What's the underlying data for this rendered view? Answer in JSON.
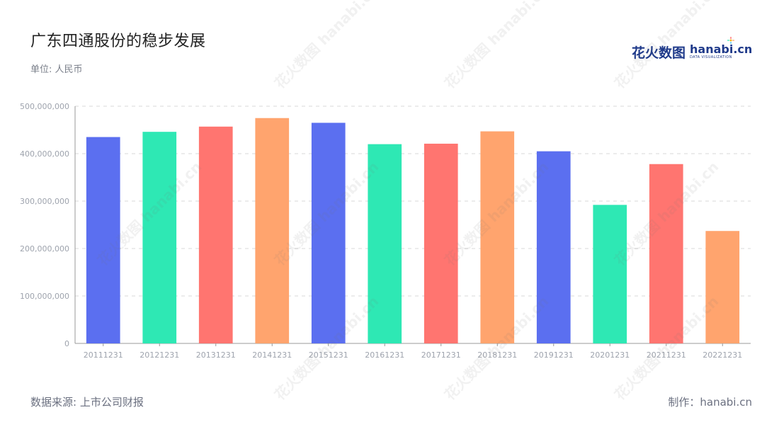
{
  "title": "广东四通股份的稳步发展",
  "unit": "单位: 人民币",
  "logo": {
    "cn": "花火数图",
    "en": "hanabi.cn",
    "sub": "DATA VISUALIZATION"
  },
  "watermark": "花火数图 hanabi.cn",
  "footer": {
    "source": "数据来源: 上市公司财报",
    "credit": "制作：hanabi.cn"
  },
  "colors": {
    "palette": [
      "#5b6ff0",
      "#2ee8b4",
      "#ff7570",
      "#ffa46e"
    ],
    "grid": "#d8d8d8",
    "axis": "#999999",
    "tick_text": "#9ea3ad"
  },
  "chart_data": {
    "type": "bar",
    "categories": [
      "20111231",
      "20121231",
      "20131231",
      "20141231",
      "20151231",
      "20161231",
      "20171231",
      "20181231",
      "20191231",
      "20201231",
      "20211231",
      "20221231"
    ],
    "values": [
      435000000,
      446000000,
      457000000,
      475000000,
      465000000,
      420000000,
      421000000,
      447000000,
      405000000,
      292000000,
      378000000,
      237000000
    ],
    "ylim": [
      0,
      500000000
    ],
    "yticks": [
      "0",
      "100,000,000",
      "200,000,000",
      "300,000,000",
      "400,000,000",
      "500,000,000"
    ],
    "grid": true,
    "title": "广东四通股份的稳步发展",
    "xlabel": "",
    "ylabel": ""
  }
}
